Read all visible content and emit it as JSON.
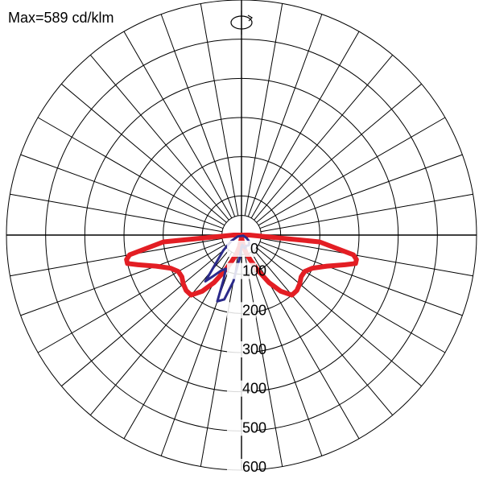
{
  "header": {
    "max_label": "Max=589 cd/klm"
  },
  "icons": {
    "rotate": "rotate-plane-icon"
  },
  "chart_data": {
    "type": "polar",
    "title": "Max=589 cd/klm",
    "unit": "cd/klm",
    "radial_ticks": [
      0,
      100,
      200,
      300,
      400,
      500,
      600
    ],
    "radial_tick_labels": [
      "0",
      "100",
      "200",
      "300",
      "400",
      "500",
      "600"
    ],
    "rlim": [
      0,
      600
    ],
    "angle_step_deg": 10,
    "grid": true,
    "colors": {
      "grid": "#000000",
      "c0_180": "#e31e24",
      "c90_270": "#2b2a8a"
    },
    "series": [
      {
        "points": [
          [
            -90,
            20
          ],
          [
            -85,
            200
          ],
          [
            -80,
            290
          ],
          [
            -78,
            300
          ],
          [
            -76,
            300
          ],
          [
            -74,
            275
          ],
          [
            -70,
            232
          ],
          [
            -65,
            200
          ],
          [
            -60,
            186
          ],
          [
            -55,
            186
          ],
          [
            -50,
            194
          ],
          [
            -45,
            200
          ],
          [
            -40,
            200
          ],
          [
            -35,
            175
          ],
          [
            -30,
            140
          ],
          [
            -25,
            100
          ],
          [
            -20,
            70
          ],
          [
            -15,
            50
          ],
          [
            -10,
            30
          ],
          [
            -5,
            10
          ],
          [
            0,
            0
          ],
          [
            5,
            10
          ],
          [
            10,
            30
          ],
          [
            15,
            50
          ],
          [
            20,
            70
          ],
          [
            25,
            100
          ],
          [
            30,
            140
          ],
          [
            35,
            175
          ],
          [
            40,
            200
          ],
          [
            45,
            200
          ],
          [
            50,
            194
          ],
          [
            55,
            186
          ],
          [
            60,
            186
          ],
          [
            65,
            200
          ],
          [
            70,
            232
          ],
          [
            74,
            275
          ],
          [
            76,
            300
          ],
          [
            78,
            300
          ],
          [
            80,
            290
          ],
          [
            85,
            200
          ],
          [
            90,
            20
          ]
        ]
      },
      {
        "points": [
          [
            -70,
            10
          ],
          [
            -60,
            30
          ],
          [
            -50,
            60
          ],
          [
            -45,
            80
          ],
          [
            -40,
            120
          ],
          [
            -38,
            150
          ],
          [
            -35,
            130
          ],
          [
            -30,
            105
          ],
          [
            -25,
            95
          ],
          [
            -22,
            120
          ],
          [
            -20,
            180
          ],
          [
            -15,
            170
          ],
          [
            -10,
            120
          ],
          [
            -5,
            60
          ],
          [
            0,
            30
          ],
          [
            5,
            25
          ],
          [
            10,
            30
          ],
          [
            15,
            35
          ],
          [
            25,
            30
          ],
          [
            35,
            32
          ],
          [
            40,
            30
          ],
          [
            50,
            25
          ],
          [
            60,
            15
          ],
          [
            70,
            5
          ]
        ]
      }
    ]
  }
}
